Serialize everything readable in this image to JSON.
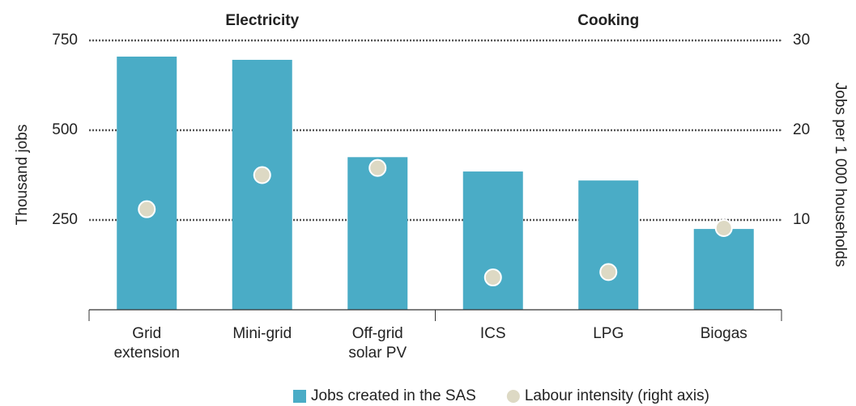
{
  "chart_data": {
    "type": "bar",
    "group_labels": [
      "Electricity",
      "Cooking"
    ],
    "categories": [
      "Grid\nextension",
      "Mini-grid",
      "Off-grid\nsolar PV",
      "ICS",
      "LPG",
      "Biogas"
    ],
    "series": [
      {
        "name": "Jobs created in the SAS",
        "color": "#4aacc6",
        "type": "bar",
        "values": [
          705,
          696,
          425,
          385,
          360,
          225
        ]
      },
      {
        "name": "Labour intensity (right axis)",
        "color": "#ddd9c4",
        "type": "scatter",
        "axis": "y2",
        "values": [
          11.2,
          15.0,
          15.8,
          3.6,
          4.2,
          9.1
        ]
      }
    ],
    "ylabel": "Thousand jobs",
    "y2label": "Jobs per 1 000 households",
    "ylim": [
      0,
      750
    ],
    "yticks": [
      250,
      500,
      750
    ],
    "y2lim": [
      0,
      30
    ],
    "y2ticks": [
      10,
      20,
      30
    ],
    "grid": true
  }
}
